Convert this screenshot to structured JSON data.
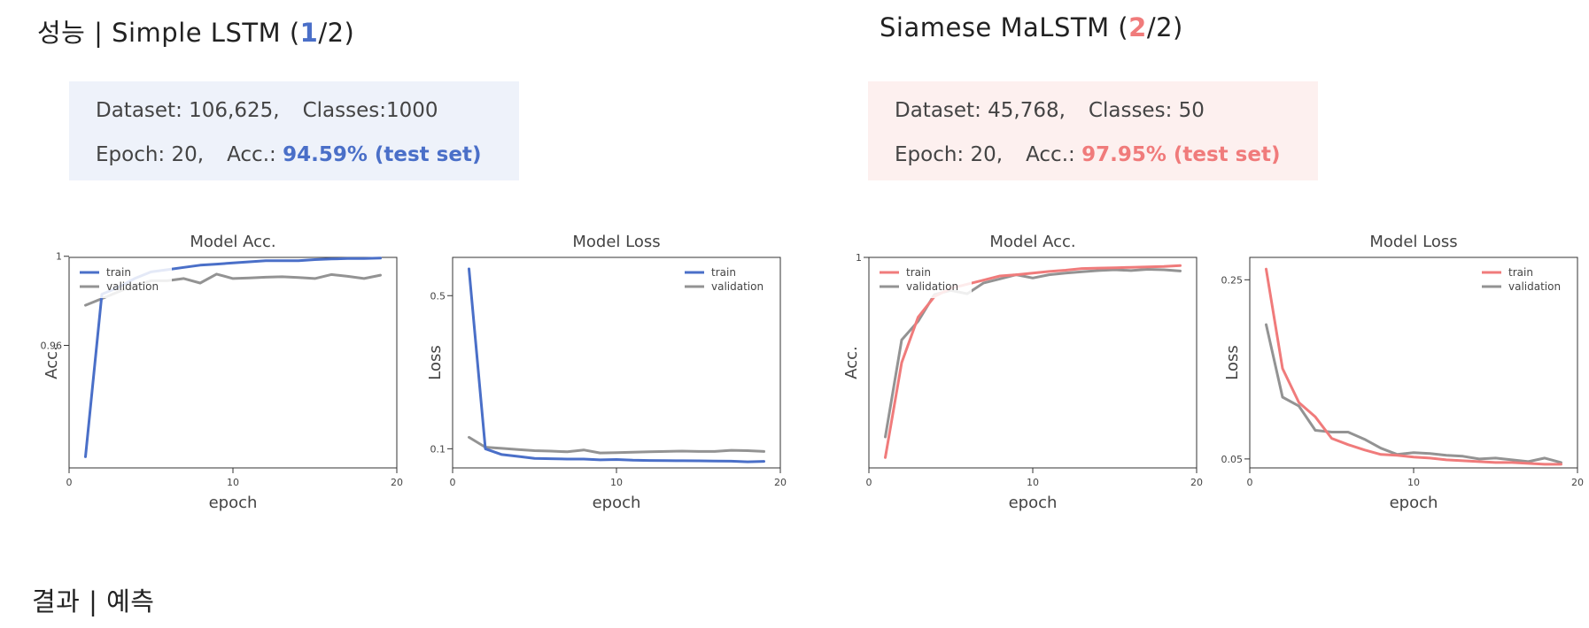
{
  "left": {
    "title_prefix": "성능 | Simple LSTM (",
    "title_num": "1",
    "title_suffix": "/2)",
    "dataset_label": "Dataset: 106,625,",
    "classes_label": "Classes:1000",
    "epoch_label": "Epoch: 20,",
    "acc_label": "Acc.:",
    "acc_value": "94.59% (test set)"
  },
  "right": {
    "title_prefix": "Siamese MaLSTM (",
    "title_num": "2",
    "title_suffix": "/2)",
    "dataset_label": "Dataset: 45,768,",
    "classes_label": "Classes: 50",
    "epoch_label": "Epoch: 20,",
    "acc_label": "Acc.:",
    "acc_value": "97.95% (test set)"
  },
  "bottom_title": "결과 | 예측",
  "colors": {
    "blue": "#4a6fc8",
    "red": "#f07b7b",
    "gray": "#939393"
  },
  "chart_data": [
    {
      "type": "line",
      "title": "Model Acc.",
      "xlabel": "epoch",
      "ylabel": "Acc.",
      "xlim": [
        0,
        20
      ],
      "ylim": [
        0.905,
        0.9995
      ],
      "xticks": [
        0,
        10,
        20
      ],
      "yticks": [
        0.96,
        1
      ],
      "yticklabels": [
        "0.96",
        "1"
      ],
      "legend": "top-left",
      "series": [
        {
          "name": "train",
          "color": "#4a6fc8",
          "x": [
            1,
            2,
            3,
            4,
            5,
            6,
            7,
            8,
            9,
            10,
            11,
            12,
            13,
            14,
            15,
            16,
            17,
            18,
            19
          ],
          "y": [
            0.91,
            0.983,
            0.986,
            0.99,
            0.993,
            0.994,
            0.995,
            0.996,
            0.9965,
            0.997,
            0.9975,
            0.998,
            0.998,
            0.998,
            0.9985,
            0.9988,
            0.999,
            0.999,
            0.9992
          ]
        },
        {
          "name": "validation",
          "color": "#939393",
          "x": [
            1,
            2,
            3,
            4,
            5,
            6,
            7,
            8,
            9,
            10,
            11,
            12,
            13,
            14,
            15,
            16,
            17,
            18,
            19
          ],
          "y": [
            0.978,
            0.981,
            0.984,
            0.987,
            0.989,
            0.989,
            0.99,
            0.988,
            0.992,
            0.99,
            0.9903,
            0.9906,
            0.9908,
            0.9905,
            0.99,
            0.9918,
            0.991,
            0.99,
            0.9915
          ]
        }
      ]
    },
    {
      "type": "line",
      "title": "Model Loss",
      "xlabel": "epoch",
      "ylabel": "Loss",
      "xlim": [
        0,
        20
      ],
      "ylim": [
        0.05,
        0.6
      ],
      "xticks": [
        0,
        10,
        20
      ],
      "yticks": [
        0.1,
        0.5
      ],
      "yticklabels": [
        "0.1",
        "0.5"
      ],
      "legend": "top-right",
      "series": [
        {
          "name": "train",
          "color": "#4a6fc8",
          "x": [
            1,
            2,
            3,
            4,
            5,
            6,
            7,
            8,
            9,
            10,
            11,
            12,
            13,
            14,
            15,
            16,
            17,
            18,
            19
          ],
          "y": [
            0.57,
            0.1,
            0.085,
            0.08,
            0.075,
            0.074,
            0.073,
            0.073,
            0.071,
            0.072,
            0.07,
            0.0695,
            0.069,
            0.0688,
            0.0685,
            0.068,
            0.0675,
            0.066,
            0.067
          ]
        },
        {
          "name": "validation",
          "color": "#939393",
          "x": [
            1,
            2,
            3,
            4,
            5,
            6,
            7,
            8,
            9,
            10,
            11,
            12,
            13,
            14,
            15,
            16,
            17,
            18,
            19
          ],
          "y": [
            0.13,
            0.104,
            0.101,
            0.098,
            0.095,
            0.094,
            0.092,
            0.097,
            0.089,
            0.09,
            0.091,
            0.092,
            0.093,
            0.094,
            0.093,
            0.093,
            0.096,
            0.095,
            0.093
          ]
        }
      ]
    },
    {
      "type": "line",
      "title": "Model Acc.",
      "xlabel": "epoch",
      "ylabel": "Acc.",
      "xlim": [
        0,
        20
      ],
      "ylim": [
        0.49,
        1.0
      ],
      "xticks": [
        0,
        10,
        20
      ],
      "yticks": [
        1
      ],
      "yticklabels": [
        "1"
      ],
      "legend": "top-left",
      "series": [
        {
          "name": "train",
          "color": "#f07b7b",
          "x": [
            1,
            2,
            3,
            4,
            5,
            6,
            7,
            8,
            9,
            10,
            11,
            12,
            13,
            14,
            15,
            16,
            17,
            18,
            19
          ],
          "y": [
            0.515,
            0.745,
            0.855,
            0.905,
            0.925,
            0.935,
            0.945,
            0.955,
            0.958,
            0.962,
            0.966,
            0.969,
            0.973,
            0.974,
            0.975,
            0.976,
            0.977,
            0.978,
            0.98
          ]
        },
        {
          "name": "validation",
          "color": "#939393",
          "x": [
            1,
            2,
            3,
            4,
            5,
            6,
            7,
            8,
            9,
            10,
            11,
            12,
            13,
            14,
            15,
            16,
            17,
            18,
            19
          ],
          "y": [
            0.565,
            0.8,
            0.845,
            0.91,
            0.92,
            0.912,
            0.938,
            0.948,
            0.958,
            0.95,
            0.958,
            0.962,
            0.965,
            0.968,
            0.97,
            0.968,
            0.971,
            0.97,
            0.967
          ]
        }
      ]
    },
    {
      "type": "line",
      "title": "Model Loss",
      "xlabel": "epoch",
      "ylabel": "Loss",
      "xlim": [
        0,
        20
      ],
      "ylim": [
        0.04,
        0.275
      ],
      "xticks": [
        0,
        10,
        20
      ],
      "yticks": [
        0.05,
        0.25
      ],
      "yticklabels": [
        "0.05",
        "0.25"
      ],
      "legend": "top-right",
      "series": [
        {
          "name": "train",
          "color": "#f07b7b",
          "x": [
            1,
            2,
            3,
            4,
            5,
            6,
            7,
            8,
            9,
            10,
            11,
            12,
            13,
            14,
            15,
            16,
            17,
            18,
            19
          ],
          "y": [
            0.262,
            0.151,
            0.113,
            0.097,
            0.073,
            0.066,
            0.06,
            0.055,
            0.054,
            0.052,
            0.051,
            0.049,
            0.048,
            0.047,
            0.046,
            0.046,
            0.045,
            0.044,
            0.044
          ]
        },
        {
          "name": "validation",
          "color": "#939393",
          "x": [
            1,
            2,
            3,
            4,
            5,
            6,
            7,
            8,
            9,
            10,
            11,
            12,
            13,
            14,
            15,
            16,
            17,
            18,
            19
          ],
          "y": [
            0.2,
            0.119,
            0.109,
            0.082,
            0.08,
            0.08,
            0.072,
            0.062,
            0.055,
            0.057,
            0.056,
            0.054,
            0.053,
            0.05,
            0.051,
            0.049,
            0.047,
            0.051,
            0.046
          ]
        }
      ]
    }
  ]
}
